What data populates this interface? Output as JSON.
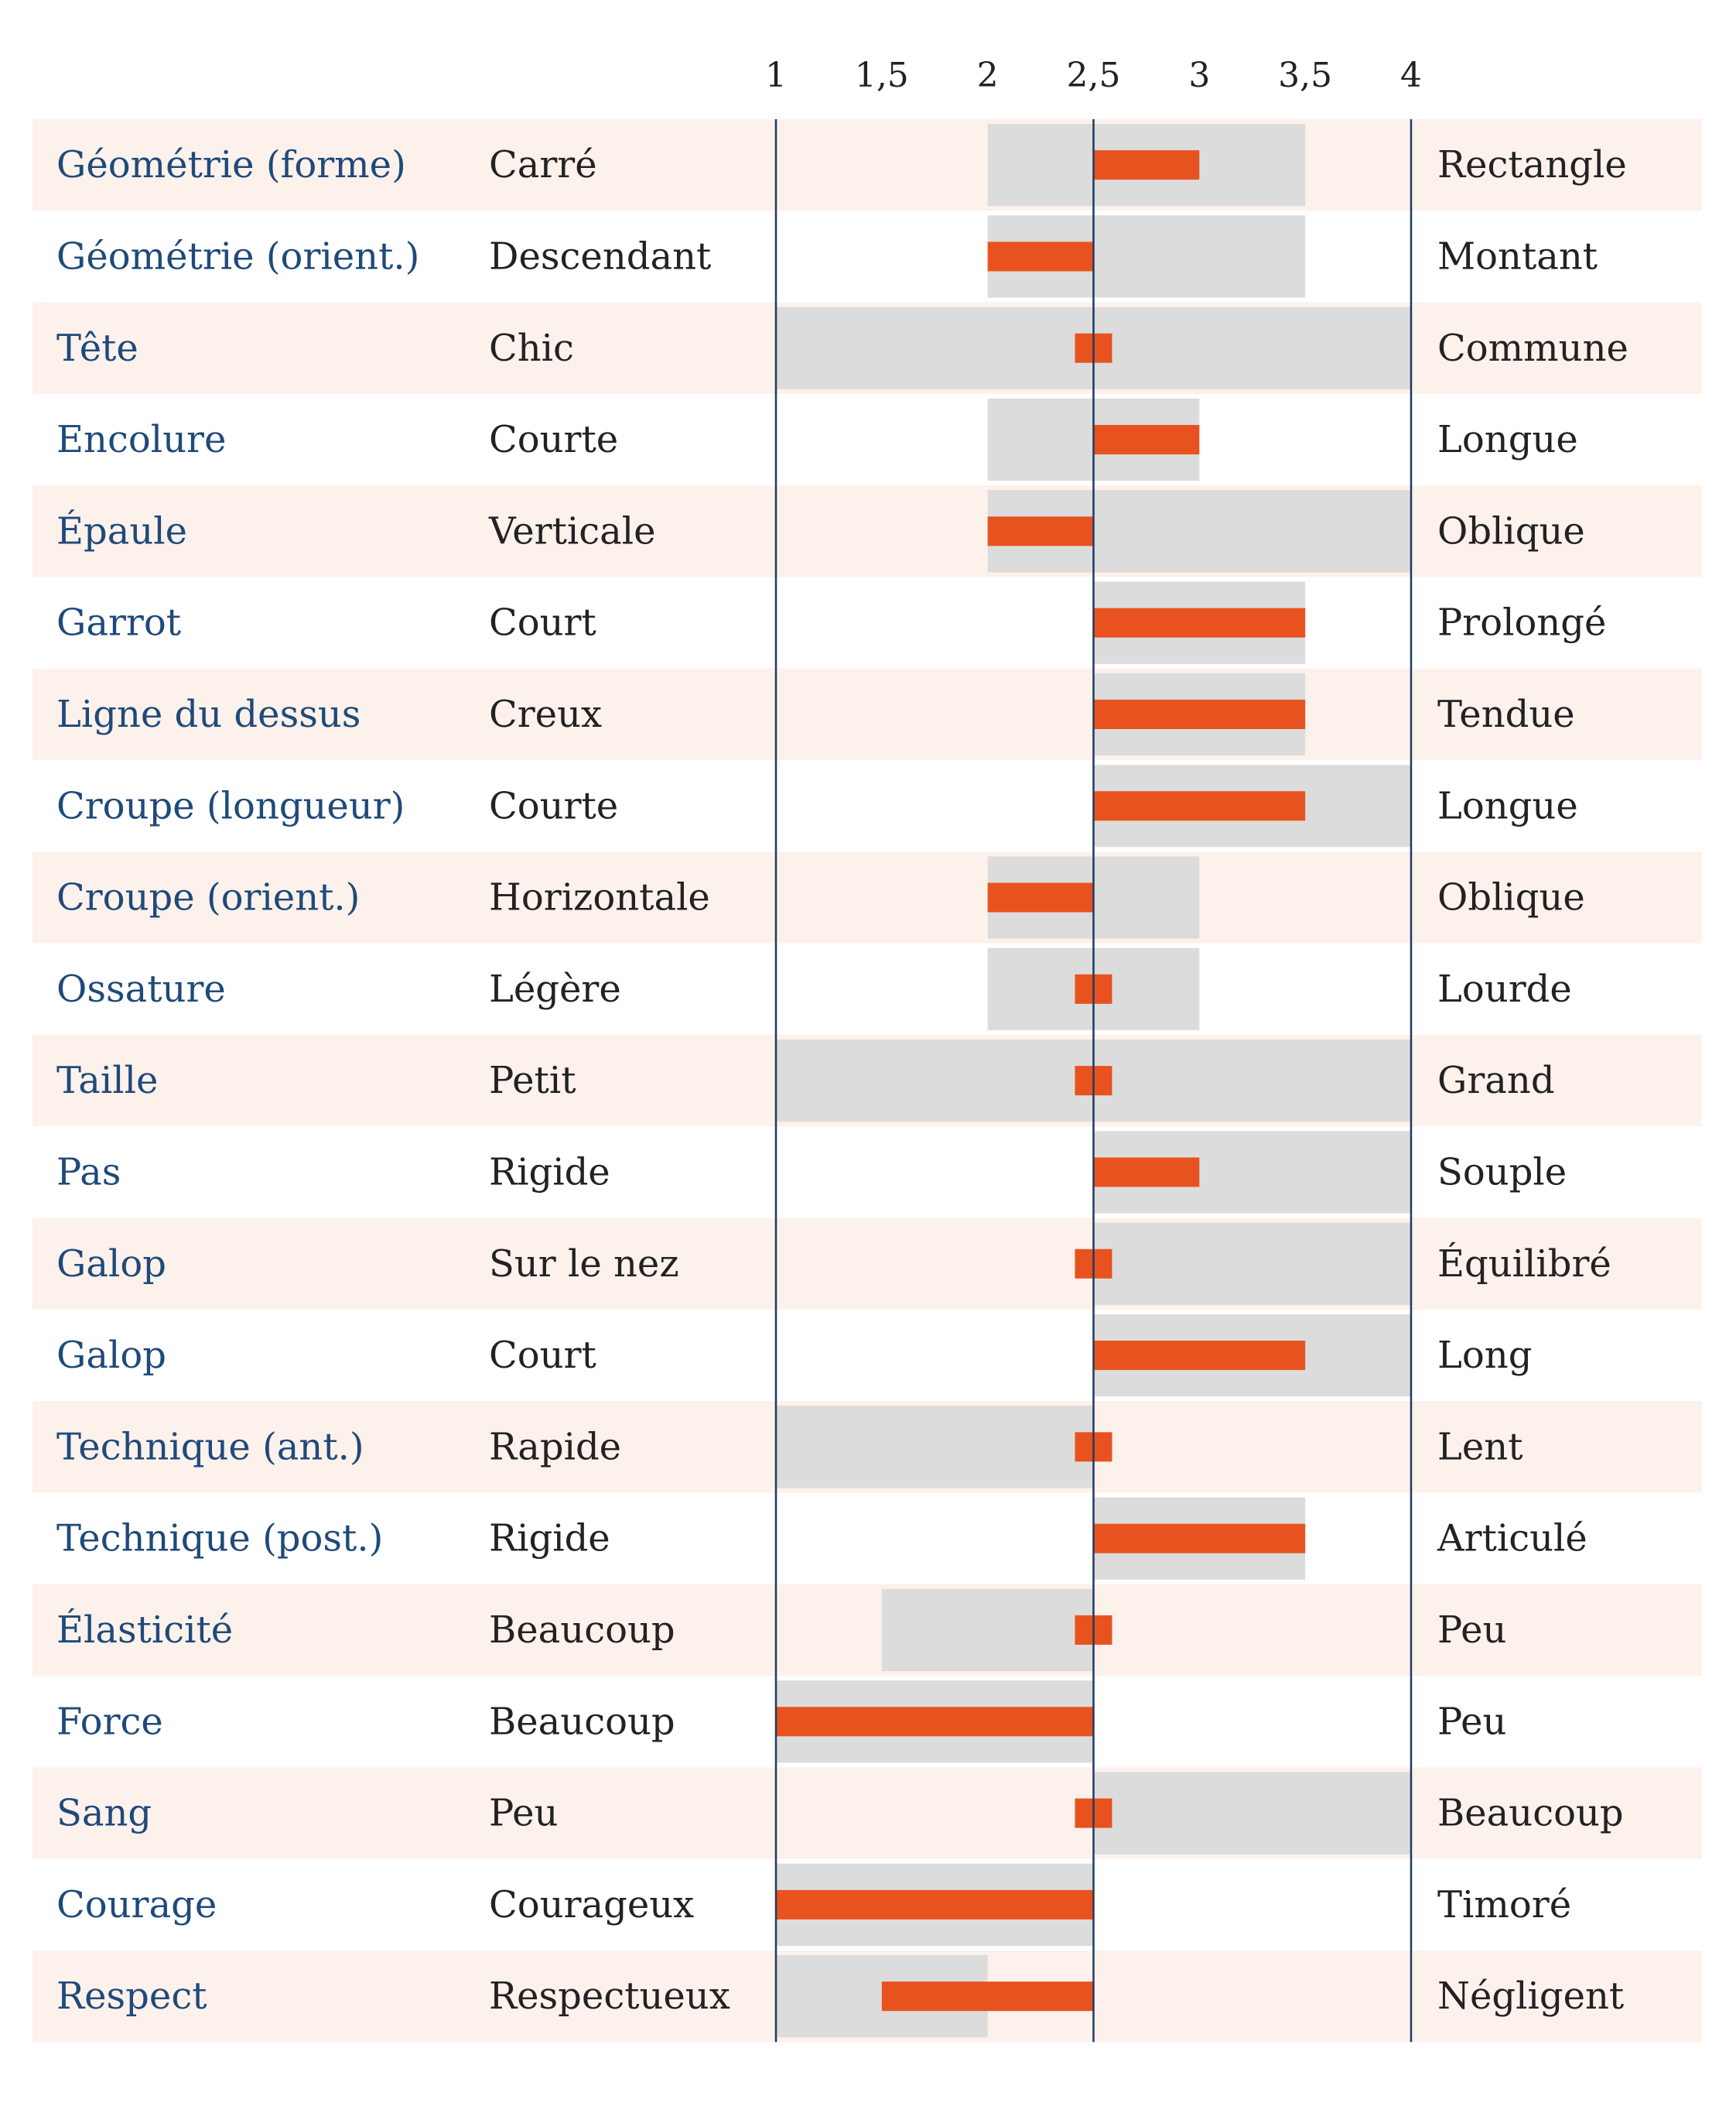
{
  "chart_data": {
    "type": "bar",
    "xlim": [
      1,
      4
    ],
    "ticks": [
      {
        "value": 1,
        "label": "1"
      },
      {
        "value": 1.5,
        "label": "1,5"
      },
      {
        "value": 2,
        "label": "2"
      },
      {
        "value": 2.5,
        "label": "2,5"
      },
      {
        "value": 3,
        "label": "3"
      },
      {
        "value": 3.5,
        "label": "3,5"
      },
      {
        "value": 4,
        "label": "4"
      }
    ],
    "reference_value": 2.5,
    "colors": {
      "criterion": "#1f4a7a",
      "text": "#222222",
      "stripe": "#fdf1ec",
      "range": "#dcdcdc",
      "bar": "#e8521f",
      "axis": "#1f3a5f"
    },
    "rows": [
      {
        "criterion": "Géométrie (forme)",
        "low": "Carré",
        "high": "Rectangle",
        "range": [
          2,
          3.5
        ],
        "value": 3
      },
      {
        "criterion": "Géométrie (orient.)",
        "low": "Descendant",
        "high": "Montant",
        "range": [
          2,
          3.5
        ],
        "value": 2
      },
      {
        "criterion": "Tête",
        "low": "Chic",
        "high": "Commune",
        "range": [
          1,
          4
        ],
        "value": 2.5
      },
      {
        "criterion": "Encolure",
        "low": "Courte",
        "high": "Longue",
        "range": [
          2,
          3
        ],
        "value": 3
      },
      {
        "criterion": "Épaule",
        "low": "Verticale",
        "high": "Oblique",
        "range": [
          2,
          4
        ],
        "value": 2
      },
      {
        "criterion": "Garrot",
        "low": "Court",
        "high": "Prolongé",
        "range": [
          2.5,
          3.5
        ],
        "value": 3.5
      },
      {
        "criterion": "Ligne du dessus",
        "low": "Creux",
        "high": "Tendue",
        "range": [
          2.5,
          3.5
        ],
        "value": 3.5
      },
      {
        "criterion": "Croupe (longueur)",
        "low": "Courte",
        "high": "Longue",
        "range": [
          2.5,
          4
        ],
        "value": 3.5
      },
      {
        "criterion": "Croupe (orient.)",
        "low": "Horizontale",
        "high": "Oblique",
        "range": [
          2,
          3
        ],
        "value": 2
      },
      {
        "criterion": "Ossature",
        "low": "Légère",
        "high": "Lourde",
        "range": [
          2,
          3
        ],
        "value": 2.5
      },
      {
        "criterion": "Taille",
        "low": "Petit",
        "high": "Grand",
        "range": [
          1,
          4
        ],
        "value": 2.5
      },
      {
        "criterion": "Pas",
        "low": "Rigide",
        "high": "Souple",
        "range": [
          2.5,
          4
        ],
        "value": 3
      },
      {
        "criterion": "Galop",
        "low": "Sur le nez",
        "high": "Équilibré",
        "range": [
          2.5,
          4
        ],
        "value": 2.5
      },
      {
        "criterion": "Galop",
        "low": "Court",
        "high": "Long",
        "range": [
          2.5,
          4
        ],
        "value": 3.5
      },
      {
        "criterion": "Technique (ant.)",
        "low": "Rapide",
        "high": "Lent",
        "range": [
          1,
          2.5
        ],
        "value": 2.5
      },
      {
        "criterion": "Technique (post.)",
        "low": "Rigide",
        "high": "Articulé",
        "range": [
          2.5,
          3.5
        ],
        "value": 3.5
      },
      {
        "criterion": "Élasticité",
        "low": "Beaucoup",
        "high": "Peu",
        "range": [
          1.5,
          2.5
        ],
        "value": 2.5
      },
      {
        "criterion": "Force",
        "low": "Beaucoup",
        "high": "Peu",
        "range": [
          1,
          2.5
        ],
        "value": 1
      },
      {
        "criterion": "Sang",
        "low": "Peu",
        "high": "Beaucoup",
        "range": [
          2.5,
          4
        ],
        "value": 2.5
      },
      {
        "criterion": "Courage",
        "low": "Courageux",
        "high": "Timoré",
        "range": [
          1,
          2.5
        ],
        "value": 1
      },
      {
        "criterion": "Respect",
        "low": "Respectueux",
        "high": "Négligent",
        "range": [
          1,
          2
        ],
        "value": 1.5
      }
    ]
  }
}
